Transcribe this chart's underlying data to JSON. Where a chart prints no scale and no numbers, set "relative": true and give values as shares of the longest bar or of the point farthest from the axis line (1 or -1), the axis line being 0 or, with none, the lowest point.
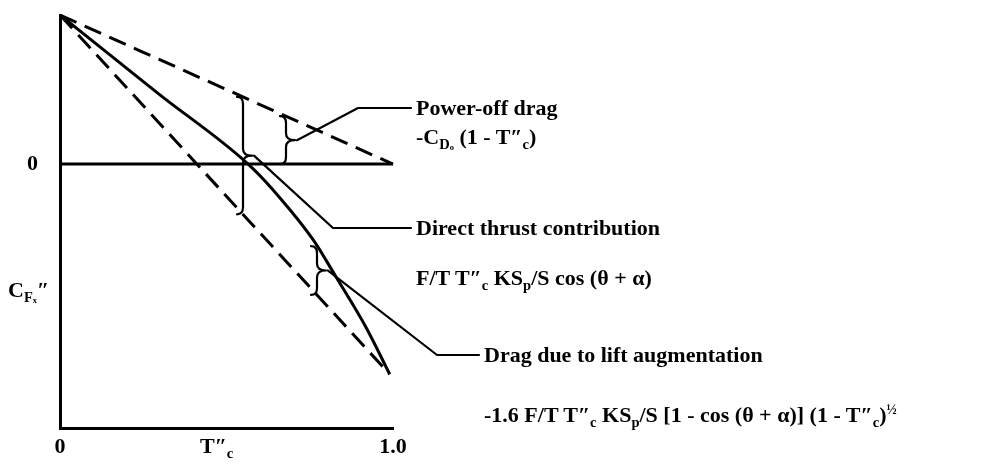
{
  "chart_data": {
    "type": "line",
    "relative": true,
    "marker": "none",
    "xlabel": "T″$_{c}$",
    "ylabel": "C$_{Fₓ}$″",
    "xlim": [
      0,
      1
    ],
    "xticks": [
      0,
      {
        "value": 1,
        "label": "1.0"
      }
    ],
    "series": [
      {
        "color": "#000000",
        "line_style": "dashed",
        "x": [
          0,
          1
        ],
        "values": [
          0.71,
          0
        ]
      },
      {
        "color": "#000000",
        "line_style": "solid",
        "x": [
          0,
          0.3,
          0.565,
          0.66,
          0.76,
          0.83,
          0.92,
          0.99
        ],
        "values": [
          0.71,
          0.33,
          0,
          -0.16,
          -0.36,
          -0.54,
          -0.78,
          -1
        ]
      },
      {
        "color": "#000000",
        "line_style": "dashed",
        "x": [
          0,
          0.99
        ],
        "values": [
          0.71,
          -1
        ]
      }
    ],
    "ref_lines": [
      {
        "axis": "y",
        "value": 0,
        "label": "0",
        "color": "#000000"
      }
    ],
    "annotations": [
      "Power-off drag\n-C$_{Dₒ}$ (1 - T″$_{c}$)",
      "Direct thrust contribution\nF/T T″$_{c}$ KS$_{p}$/S cos (θ + α)",
      "Drag due to lift augmentation\n-1.6 F/T T″$_{c}$ KS$_{p}$/S [1 - cos (θ + α)] (1 - T″$_{c}$)$^{½}$"
    ]
  }
}
